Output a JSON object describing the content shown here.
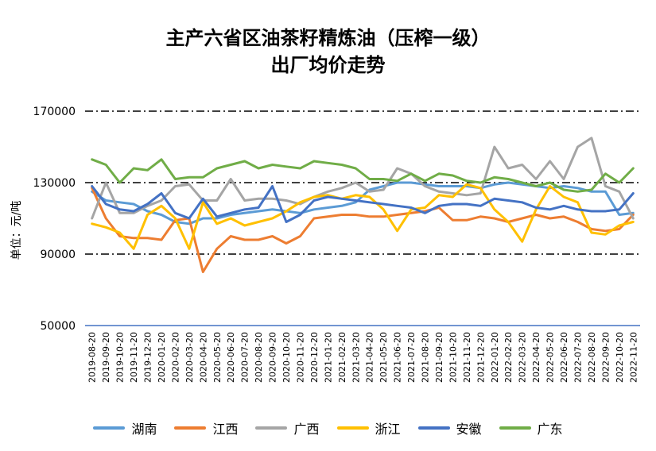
{
  "chart_data": {
    "type": "line",
    "title_line1": "主产六省区油茶籽精炼油（压榨一级）",
    "title_line2": "出厂均价走势",
    "ylabel": "单位：元/吨",
    "ylim": [
      50000,
      170000
    ],
    "yticks": [
      "170000",
      "130000",
      "90000",
      "50000"
    ],
    "grid": "dash-dot",
    "legend_position": "bottom",
    "x_labels": [
      "2019-08-20",
      "2019-09-20",
      "2019-10-20",
      "2019-11-20",
      "2019-12-20",
      "2020-01-20",
      "2020-02-20",
      "2020-03-20",
      "2020-04-20",
      "2020-05-20",
      "2020-06-20",
      "2020-07-20",
      "2020-08-20",
      "2020-09-20",
      "2020-10-20",
      "2020-11-20",
      "2020-12-20",
      "2021-01-20",
      "2021-02-20",
      "2021-03-20",
      "2021-04-20",
      "2021-05-20",
      "2021-06-20",
      "2021-07-20",
      "2021-08-20",
      "2021-09-20",
      "2021-10-20",
      "2021-11-20",
      "2021-12-20",
      "2022-01-20",
      "2022-02-20",
      "2022-03-20",
      "2022-04-20",
      "2022-05-20",
      "2022-06-20",
      "2022-07-20",
      "2022-08-20",
      "2022-09-20",
      "2022-10-20",
      "2022-11-20"
    ],
    "series": [
      {
        "name": "湖南",
        "color": "#5b9bd5",
        "values": [
          125000,
          120000,
          119000,
          118000,
          114000,
          112000,
          108000,
          107000,
          110000,
          110000,
          112000,
          113000,
          114000,
          115000,
          114000,
          113000,
          115000,
          116000,
          117000,
          119000,
          126000,
          128000,
          130000,
          130000,
          129000,
          128000,
          128000,
          128000,
          127000,
          129000,
          130000,
          129000,
          128000,
          127000,
          128000,
          127000,
          125000,
          125000,
          112000,
          113000
        ]
      },
      {
        "name": "江西",
        "color": "#ed7d31",
        "values": [
          127000,
          110000,
          100000,
          99000,
          99000,
          98000,
          109000,
          110000,
          80000,
          93000,
          100000,
          98000,
          98000,
          100000,
          96000,
          100000,
          110000,
          111000,
          112000,
          112000,
          111000,
          111000,
          112000,
          113000,
          114000,
          116000,
          109000,
          109000,
          111000,
          110000,
          108000,
          110000,
          112000,
          110000,
          111000,
          108000,
          104000,
          103000,
          104000,
          112000
        ]
      },
      {
        "name": "广西",
        "color": "#a5a5a5",
        "values": [
          110000,
          130000,
          113000,
          113000,
          117000,
          120000,
          128000,
          129000,
          120000,
          120000,
          132000,
          120000,
          121000,
          121000,
          120000,
          118000,
          122000,
          125000,
          127000,
          130000,
          125000,
          126000,
          138000,
          135000,
          128000,
          125000,
          124000,
          123000,
          124000,
          150000,
          138000,
          140000,
          132000,
          142000,
          132000,
          150000,
          155000,
          128000,
          125000,
          110000
        ]
      },
      {
        "name": "浙江",
        "color": "#ffc000",
        "values": [
          107000,
          105000,
          102000,
          93000,
          112000,
          117000,
          110000,
          93000,
          119000,
          107000,
          110000,
          106000,
          108000,
          110000,
          114000,
          119000,
          122000,
          123000,
          121000,
          123000,
          122000,
          115000,
          103000,
          115000,
          116000,
          123000,
          122000,
          129000,
          127000,
          115000,
          108000,
          97000,
          115000,
          128000,
          122000,
          119000,
          102000,
          101000,
          106000,
          108000
        ]
      },
      {
        "name": "安徽",
        "color": "#4472c4",
        "values": [
          128000,
          118000,
          115000,
          114000,
          118000,
          124000,
          113000,
          110000,
          121000,
          111000,
          113000,
          115000,
          116000,
          128000,
          108000,
          112000,
          120000,
          122000,
          121000,
          120000,
          119000,
          118000,
          117000,
          116000,
          113000,
          117000,
          118000,
          118000,
          117000,
          121000,
          120000,
          119000,
          116000,
          115000,
          117000,
          115000,
          114000,
          114000,
          115000,
          124000
        ]
      },
      {
        "name": "广东",
        "color": "#70ad47",
        "values": [
          143000,
          140000,
          130000,
          138000,
          137000,
          143000,
          132000,
          133000,
          133000,
          138000,
          140000,
          142000,
          138000,
          140000,
          139000,
          138000,
          142000,
          141000,
          140000,
          138000,
          132000,
          132000,
          131000,
          135000,
          131000,
          135000,
          134000,
          131000,
          130000,
          133000,
          132000,
          130000,
          128000,
          130000,
          126000,
          125000,
          126000,
          135000,
          130000,
          138000
        ]
      }
    ]
  }
}
